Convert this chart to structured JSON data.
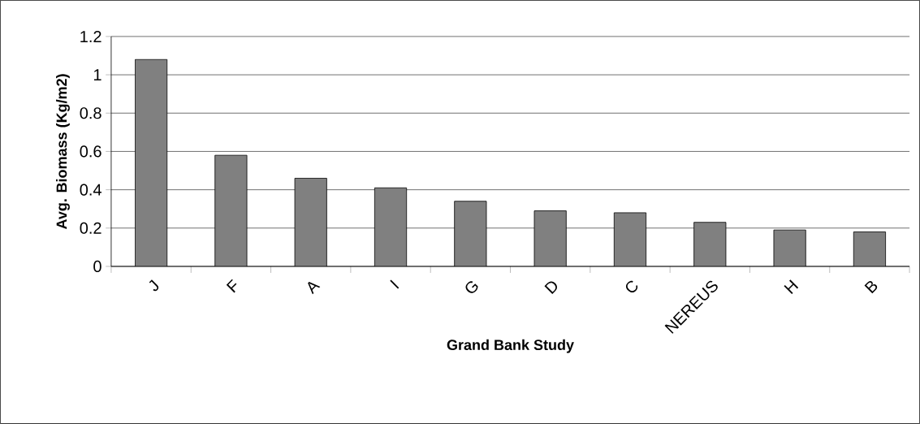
{
  "chart_data": {
    "type": "bar",
    "xlabel": "Grand Bank Study",
    "ylabel": "Avg. Biomass (Kg/m2)",
    "categories": [
      "J",
      "F",
      "A",
      "I",
      "G",
      "D",
      "C",
      "NEREUS",
      "H",
      "B"
    ],
    "values": [
      1.08,
      0.58,
      0.46,
      0.41,
      0.34,
      0.29,
      0.28,
      0.23,
      0.19,
      0.18
    ],
    "color": "#808080",
    "ylim": [
      0,
      1.2
    ],
    "yticks": [
      0,
      0.2,
      0.4,
      0.6,
      0.8,
      1,
      1.2
    ],
    "grid": "y"
  }
}
